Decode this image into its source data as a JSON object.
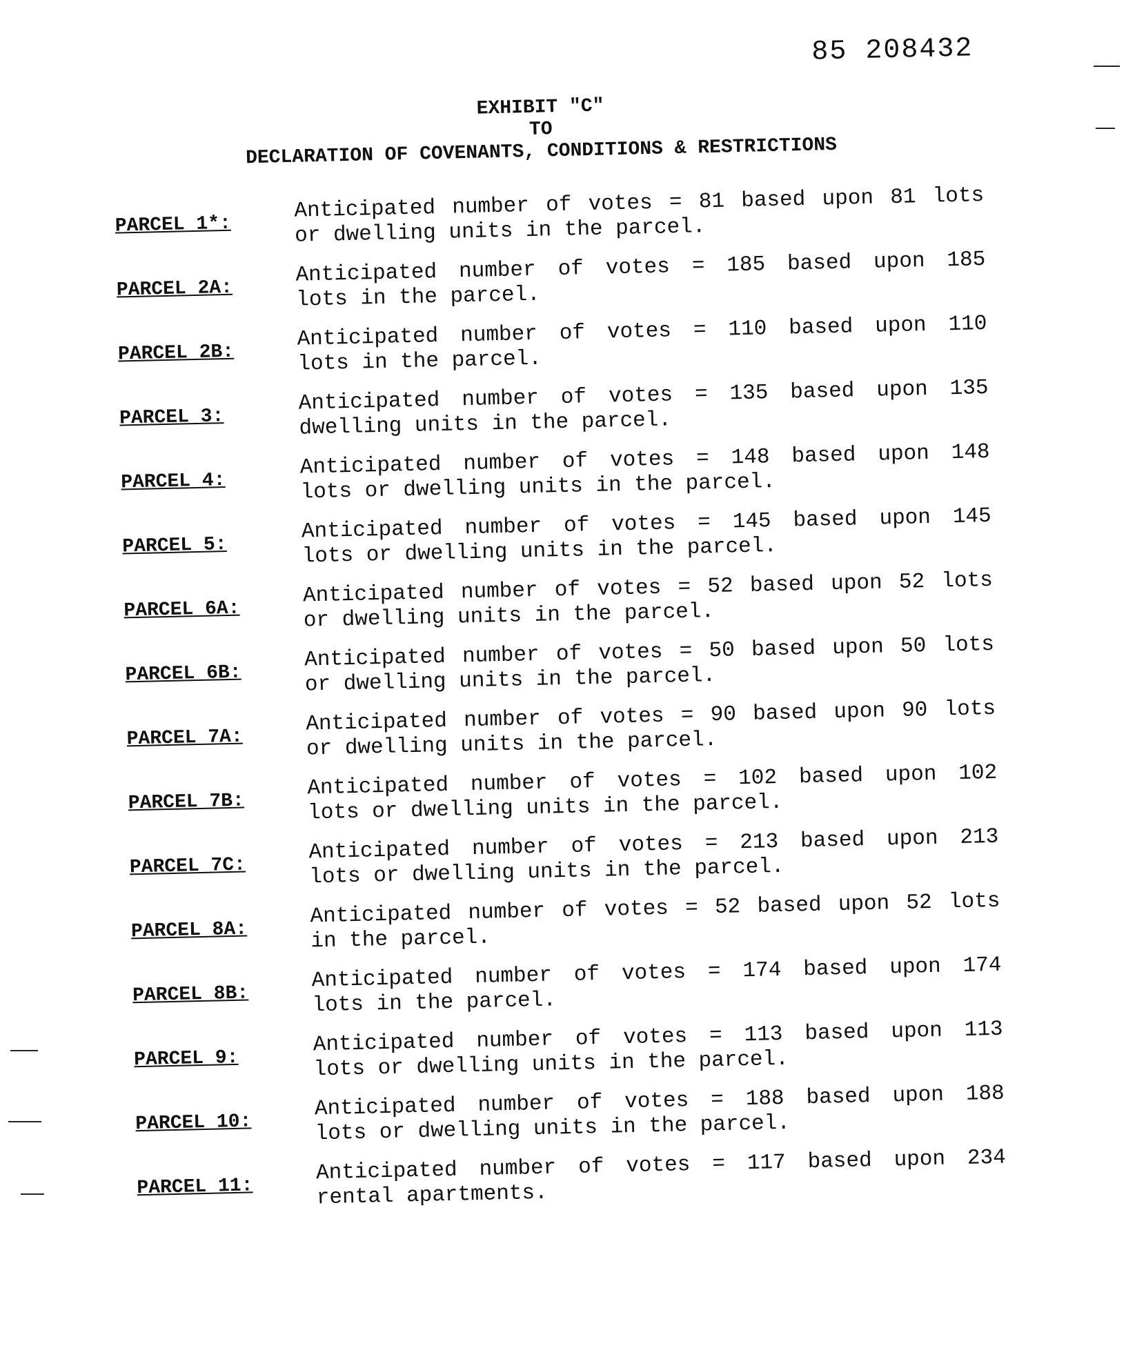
{
  "document_number": "85 208432",
  "heading": {
    "line1": "EXHIBIT \"C\"",
    "line2": "TO",
    "line3": "DECLARATION OF COVENANTS, CONDITIONS & RESTRICTIONS"
  },
  "parcels": [
    {
      "label": "PARCEL 1*:",
      "line1": "Anticipated number of votes = 81 based upon 81 lots",
      "line2": "or dwelling units in the parcel."
    },
    {
      "label": "PARCEL 2A:",
      "line1": "Anticipated number of votes = 185 based upon 185",
      "line2": "lots in the parcel."
    },
    {
      "label": "PARCEL 2B:",
      "line1": "Anticipated number of votes = 110 based upon 110",
      "line2": "lots in the parcel."
    },
    {
      "label": "PARCEL 3:",
      "line1": "Anticipated number of votes = 135 based upon 135",
      "line2": "dwelling units in the parcel."
    },
    {
      "label": "PARCEL 4:",
      "line1": "Anticipated number of votes = 148 based upon 148",
      "line2": "lots or dwelling units in the parcel."
    },
    {
      "label": "PARCEL 5:",
      "line1": "Anticipated number of votes = 145 based upon 145",
      "line2": "lots or dwelling units in the parcel."
    },
    {
      "label": "PARCEL 6A:",
      "line1": "Anticipated number of votes = 52 based upon 52 lots",
      "line2": "or dwelling units in the parcel."
    },
    {
      "label": "PARCEL 6B:",
      "line1": "Anticipated number of votes = 50 based upon 50 lots",
      "line2": "or dwelling units in the parcel."
    },
    {
      "label": "PARCEL 7A:",
      "line1": "Anticipated number of votes = 90 based upon 90 lots",
      "line2": "or dwelling units in the parcel."
    },
    {
      "label": "PARCEL 7B:",
      "line1": "Anticipated number of votes = 102 based upon 102",
      "line2": "lots or dwelling units in the parcel."
    },
    {
      "label": "PARCEL 7C:",
      "line1": "Anticipated number of votes = 213 based upon 213",
      "line2": "lots or dwelling units in the parcel."
    },
    {
      "label": "PARCEL 8A:",
      "line1": "Anticipated number of votes = 52 based upon 52 lots",
      "line2": "in the parcel."
    },
    {
      "label": "PARCEL 8B:",
      "line1": "Anticipated number of votes = 174 based upon 174",
      "line2": "lots in the parcel."
    },
    {
      "label": "PARCEL 9:",
      "line1": "Anticipated number of votes = 113 based upon 113",
      "line2": "lots or dwelling units in the parcel."
    },
    {
      "label": "PARCEL 10:",
      "line1": "Anticipated number of votes = 188 based upon 188",
      "line2": "lots or dwelling units in the parcel."
    },
    {
      "label": "PARCEL 11:",
      "line1": "Anticipated number of votes = 117 based upon 234",
      "line2": "rental apartments."
    }
  ]
}
